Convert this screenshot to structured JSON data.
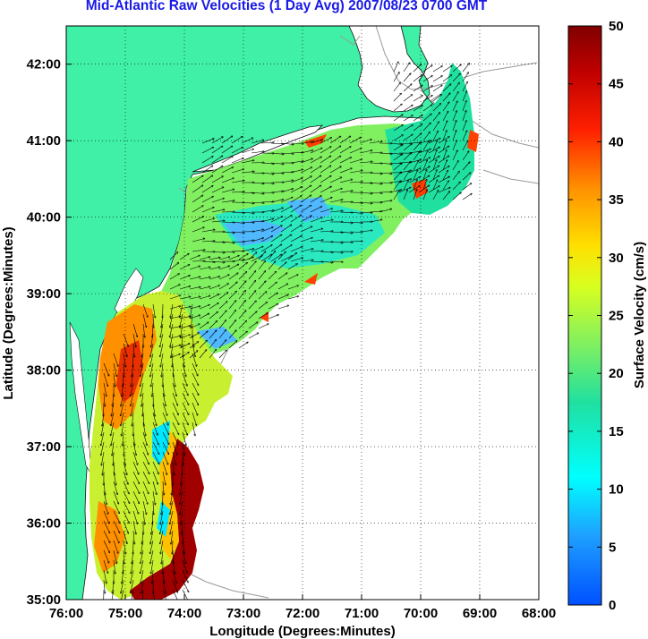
{
  "title": "Mid-Atlantic Raw Velocities (1 Day Avg) 2007/08/23 0700 GMT",
  "x_axis": {
    "label": "Longitude (Degrees:Minutes)",
    "ticks": [
      "76:00",
      "75:00",
      "74:00",
      "73:00",
      "72:00",
      "71:00",
      "70:00",
      "69:00",
      "68:00"
    ]
  },
  "y_axis": {
    "label": "Latitude (Degrees:Minutes)",
    "ticks": [
      "35:00",
      "36:00",
      "37:00",
      "38:00",
      "39:00",
      "40:00",
      "41:00",
      "42:00"
    ]
  },
  "colorbar": {
    "label": "Surface Velocity (cm/s)",
    "ticks": [
      "0",
      "5",
      "10",
      "15",
      "20",
      "25",
      "30",
      "35",
      "40",
      "45",
      "50"
    ],
    "min": 0,
    "max": 50
  },
  "colors": {
    "land": "#3ff0a6",
    "title": "#1a1ae6",
    "bathymetry": "#9a9a9a"
  },
  "map": {
    "lon_range": [
      -76,
      -68
    ],
    "lat_range": [
      35,
      42.5
    ],
    "grid": "dotted"
  }
}
